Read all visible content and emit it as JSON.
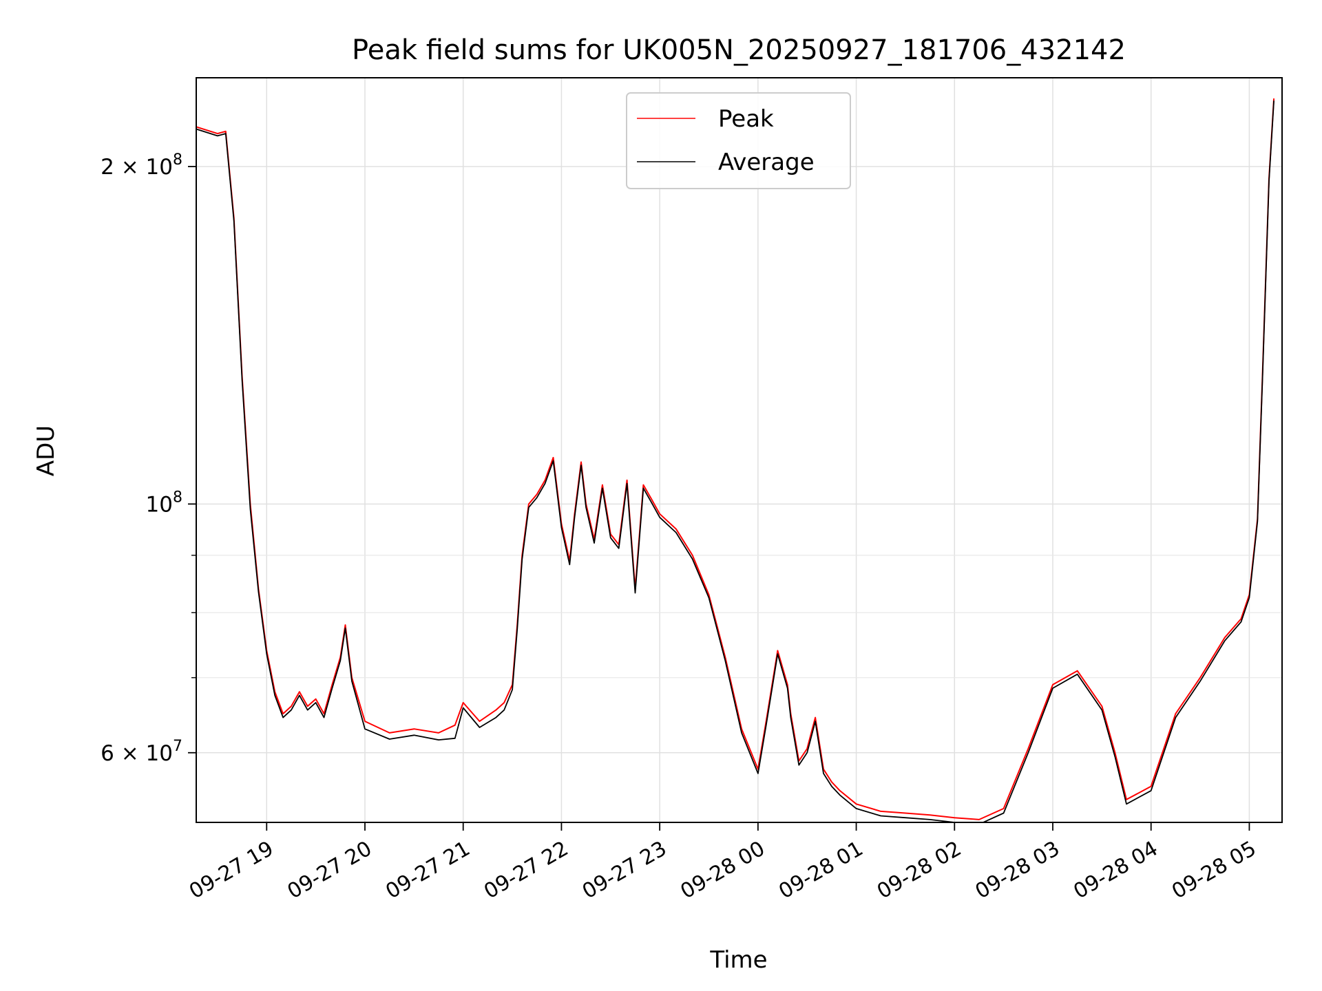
{
  "chart_data": {
    "type": "line",
    "title": "Peak field sums for UK005N_20250927_181706_432142",
    "xlabel": "Time",
    "ylabel": "ADU",
    "yscale": "log",
    "xlim": [
      "2025-09-27 18:17",
      "2025-09-28 05:20"
    ],
    "ylim": [
      52000000,
      240000000
    ],
    "grid": true,
    "legend_position": "top-center",
    "x_ticks": [
      "09-27 19",
      "09-27 20",
      "09-27 21",
      "09-27 22",
      "09-27 23",
      "09-28 00",
      "09-28 01",
      "09-28 02",
      "09-28 03",
      "09-28 04",
      "09-28 05"
    ],
    "y_ticks": [
      {
        "value": 200000000,
        "label": "2 × 10^8",
        "base": "2 × 10",
        "exp": "8"
      },
      {
        "value": 100000000,
        "label": "10^8",
        "base": "10",
        "exp": "8"
      },
      {
        "value": 60000000,
        "label": "6 × 10^7",
        "base": "6 × 10",
        "exp": "7"
      }
    ],
    "y_minor_ticks": [
      70000000,
      80000000,
      90000000
    ],
    "x": [
      "2025-09-27 18:17",
      "2025-09-27 18:30",
      "2025-09-27 18:35",
      "2025-09-27 18:40",
      "2025-09-27 18:45",
      "2025-09-27 18:50",
      "2025-09-27 18:55",
      "2025-09-27 19:00",
      "2025-09-27 19:05",
      "2025-09-27 19:10",
      "2025-09-27 19:15",
      "2025-09-27 19:20",
      "2025-09-27 19:25",
      "2025-09-27 19:30",
      "2025-09-27 19:35",
      "2025-09-27 19:40",
      "2025-09-27 19:45",
      "2025-09-27 19:48",
      "2025-09-27 19:52",
      "2025-09-27 20:00",
      "2025-09-27 20:15",
      "2025-09-27 20:30",
      "2025-09-27 20:45",
      "2025-09-27 20:55",
      "2025-09-27 21:00",
      "2025-09-27 21:10",
      "2025-09-27 21:20",
      "2025-09-27 21:25",
      "2025-09-27 21:30",
      "2025-09-27 21:33",
      "2025-09-27 21:36",
      "2025-09-27 21:40",
      "2025-09-27 21:45",
      "2025-09-27 21:50",
      "2025-09-27 21:55",
      "2025-09-27 22:00",
      "2025-09-27 22:05",
      "2025-09-27 22:08",
      "2025-09-27 22:12",
      "2025-09-27 22:15",
      "2025-09-27 22:20",
      "2025-09-27 22:25",
      "2025-09-27 22:30",
      "2025-09-27 22:35",
      "2025-09-27 22:40",
      "2025-09-27 22:45",
      "2025-09-27 22:50",
      "2025-09-27 22:55",
      "2025-09-27 23:00",
      "2025-09-27 23:10",
      "2025-09-27 23:20",
      "2025-09-27 23:30",
      "2025-09-27 23:40",
      "2025-09-27 23:50",
      "2025-09-28 00:00",
      "2025-09-28 00:05",
      "2025-09-28 00:12",
      "2025-09-28 00:18",
      "2025-09-28 00:20",
      "2025-09-28 00:25",
      "2025-09-28 00:30",
      "2025-09-28 00:35",
      "2025-09-28 00:40",
      "2025-09-28 00:45",
      "2025-09-28 00:50",
      "2025-09-28 01:00",
      "2025-09-28 01:15",
      "2025-09-28 01:30",
      "2025-09-28 01:45",
      "2025-09-28 02:00",
      "2025-09-28 02:15",
      "2025-09-28 02:30",
      "2025-09-28 02:45",
      "2025-09-28 03:00",
      "2025-09-28 03:15",
      "2025-09-28 03:30",
      "2025-09-28 03:38",
      "2025-09-28 03:45",
      "2025-09-28 04:00",
      "2025-09-28 04:15",
      "2025-09-28 04:30",
      "2025-09-28 04:45",
      "2025-09-28 04:55",
      "2025-09-28 05:00",
      "2025-09-28 05:05",
      "2025-09-28 05:08",
      "2025-09-28 05:12",
      "2025-09-28 05:15"
    ],
    "series": [
      {
        "name": "Peak",
        "color": "#ff0000",
        "values": [
          217000000,
          214000000,
          215000000,
          180000000,
          130000000,
          100000000,
          84000000,
          74000000,
          68000000,
          65000000,
          66000000,
          68000000,
          66000000,
          67000000,
          65000000,
          69000000,
          73000000,
          78000000,
          70000000,
          64000000,
          62500000,
          63000000,
          62500000,
          63500000,
          66500000,
          64000000,
          65500000,
          66500000,
          69000000,
          78000000,
          90000000,
          100000000,
          102000000,
          105000000,
          110000000,
          96000000,
          89000000,
          98000000,
          109000000,
          100000000,
          93000000,
          104000000,
          94000000,
          92000000,
          105000000,
          84000000,
          104000000,
          101000000,
          98000000,
          95000000,
          90000000,
          83000000,
          73000000,
          63000000,
          58000000,
          64000000,
          74000000,
          69000000,
          65000000,
          59000000,
          60500000,
          64500000,
          58000000,
          56500000,
          55500000,
          54000000,
          53200000,
          53000000,
          52800000,
          52500000,
          52300000,
          53500000,
          60500000,
          69000000,
          71000000,
          66000000,
          60000000,
          54500000,
          56000000,
          65000000,
          70000000,
          76000000,
          79000000,
          83000000,
          97000000,
          130000000,
          195000000,
          230000000
        ]
      },
      {
        "name": "Average",
        "color": "#000000",
        "values": [
          216000000,
          213000000,
          214000000,
          179000000,
          129000000,
          99000000,
          83500000,
          73500000,
          67500000,
          64500000,
          65500000,
          67500000,
          65500000,
          66500000,
          64500000,
          68500000,
          72500000,
          77500000,
          69500000,
          63000000,
          61700000,
          62200000,
          61600000,
          61800000,
          65800000,
          63200000,
          64500000,
          65500000,
          68300000,
          77300000,
          89300000,
          99300000,
          101300000,
          104300000,
          109300000,
          95300000,
          88300000,
          97300000,
          108300000,
          99300000,
          92300000,
          103300000,
          93300000,
          91300000,
          104300000,
          83300000,
          103300000,
          100300000,
          97300000,
          94300000,
          89300000,
          82500000,
          72500000,
          62500000,
          57500000,
          63500000,
          73500000,
          68500000,
          64500000,
          58500000,
          60000000,
          64000000,
          57500000,
          56000000,
          55000000,
          53500000,
          52700000,
          52500000,
          52300000,
          52000000,
          51800000,
          53000000,
          60000000,
          68500000,
          70500000,
          65500000,
          59500000,
          54000000,
          55500000,
          64500000,
          69500000,
          75500000,
          78500000,
          82500000,
          96500000,
          129000000,
          194000000,
          229000000
        ]
      }
    ]
  }
}
